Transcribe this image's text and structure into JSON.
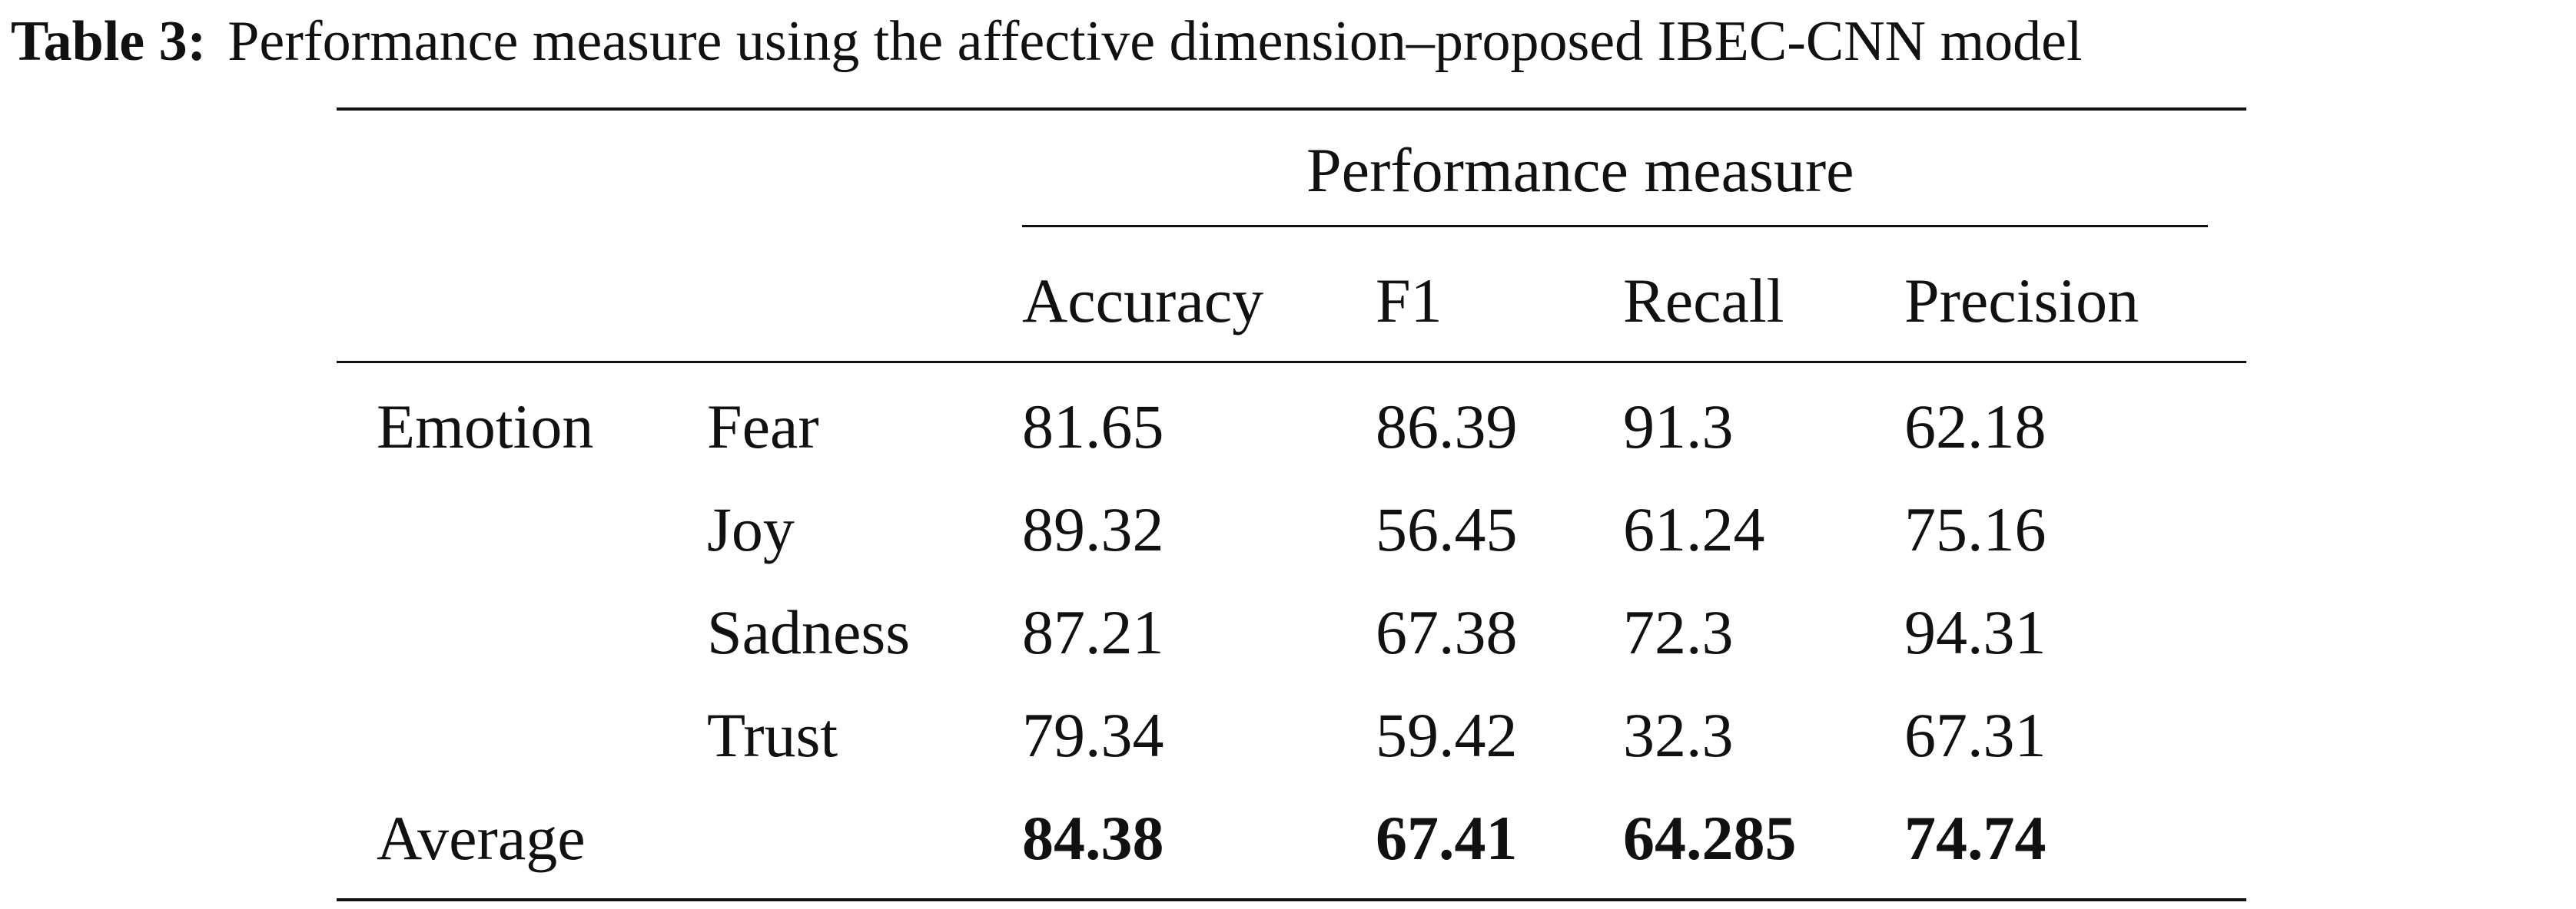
{
  "caption": {
    "label": "Table 3:",
    "text": "Performance measure using the affective dimension–proposed IBEC-CNN model"
  },
  "table": {
    "group_header": "Performance measure",
    "columns": [
      "Accuracy",
      "F1",
      "Recall",
      "Precision"
    ],
    "group_label": "Emotion",
    "rows": [
      {
        "label": "Fear",
        "values": [
          "81.65",
          "86.39",
          "91.3",
          "62.18"
        ]
      },
      {
        "label": "Joy",
        "values": [
          "89.32",
          "56.45",
          "61.24",
          "75.16"
        ]
      },
      {
        "label": "Sadness",
        "values": [
          "87.21",
          "67.38",
          "72.3",
          "94.31"
        ]
      },
      {
        "label": "Trust",
        "values": [
          "79.34",
          "59.42",
          "32.3",
          "67.31"
        ]
      }
    ],
    "average": {
      "label": "Average",
      "values": [
        "84.38",
        "67.41",
        "64.285",
        "74.74"
      ]
    }
  }
}
